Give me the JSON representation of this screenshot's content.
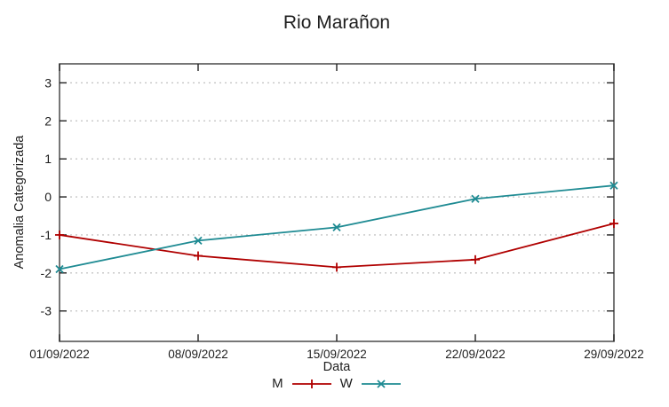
{
  "title": "Rio Marañon",
  "axes": {
    "x_label": "Data",
    "y_label": "Anomalia Categorizada"
  },
  "legend": {
    "items": [
      {
        "label": "M",
        "marker": "plus",
        "color": "#b00000"
      },
      {
        "label": "W",
        "marker": "cross",
        "color": "#1f8b93"
      }
    ]
  },
  "colors": {
    "background": "#ffffff",
    "frame": "#555555",
    "grid": "#c6c6c6",
    "text": "#1e1e1e",
    "series_m": "#b00000",
    "series_w": "#1f8b93"
  },
  "chart_data": {
    "type": "line",
    "title": "Rio Marañon",
    "xlabel": "Data",
    "ylabel": "Anomalia Categorizada",
    "categories": [
      "01/09/2022",
      "08/09/2022",
      "15/09/2022",
      "22/09/2022",
      "29/09/2022"
    ],
    "series": [
      {
        "name": "M",
        "marker": "plus",
        "color": "#b00000",
        "values": [
          -1.0,
          -1.55,
          -1.85,
          -1.65,
          -0.7
        ]
      },
      {
        "name": "W",
        "marker": "cross",
        "color": "#1f8b93",
        "values": [
          -1.9,
          -1.15,
          -0.8,
          -0.05,
          0.3
        ]
      }
    ],
    "yticks": [
      -3,
      -2,
      -1,
      0,
      1,
      2,
      3
    ],
    "ylim": [
      -3.8,
      3.5
    ],
    "grid": "horizontal-dotted",
    "ticks_mirrored": true,
    "legend_position": "bottom-center"
  }
}
